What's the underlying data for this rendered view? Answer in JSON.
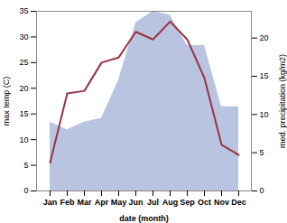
{
  "chart_data": {
    "type": "line",
    "xlabel": "date (month)",
    "ylabel": "max temp (C)",
    "y2label": "med. precipitation (kg/m2)",
    "categories": [
      "Jan",
      "Feb",
      "Mar",
      "Apr",
      "May",
      "Jun",
      "Jul",
      "Aug",
      "Sep",
      "Oct",
      "Nov",
      "Dec"
    ],
    "series": [
      {
        "type": "area",
        "axis": "y2",
        "color": "#b8c4e0",
        "values": [
          9,
          8,
          9,
          9.5,
          14.5,
          22,
          23.5,
          23,
          19,
          19,
          11,
          11
        ]
      },
      {
        "type": "line",
        "color": "#993344",
        "values": [
          5.5,
          19.0,
          19.5,
          25.0,
          26.0,
          31.0,
          29.5,
          33.0,
          29.5,
          22.0,
          9.0,
          7.0
        ]
      }
    ],
    "ylim": [
      0,
      35
    ],
    "yticks": [
      0,
      5,
      10,
      15,
      20,
      25,
      30,
      35
    ],
    "y2lim": [
      0,
      23.5
    ],
    "y2ticks": [
      0,
      5,
      10,
      15,
      20
    ]
  }
}
